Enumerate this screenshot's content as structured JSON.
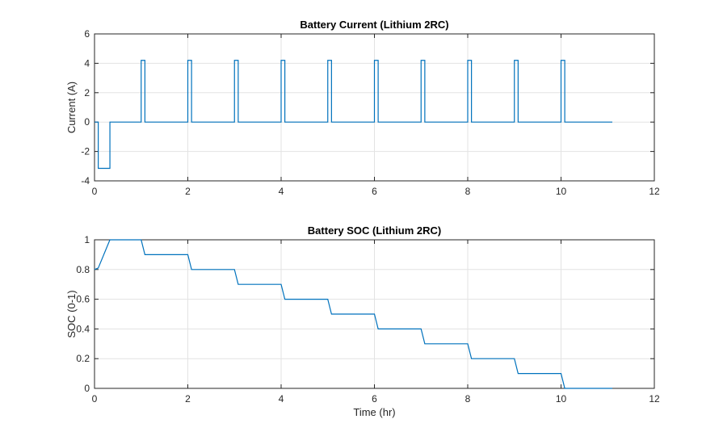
{
  "chart_data": [
    {
      "type": "line",
      "title": "Battery Current (Lithium 2RC)",
      "xlabel": "",
      "ylabel": "Current (A)",
      "xlim": [
        0,
        12
      ],
      "ylim": [
        -4,
        6
      ],
      "xticks": [
        0,
        2,
        4,
        6,
        8,
        10,
        12
      ],
      "yticks": [
        -4,
        -2,
        0,
        2,
        4,
        6
      ],
      "grid": true,
      "series_color": "#0072BD",
      "series": [
        {
          "values": [
            [
              0,
              0
            ],
            [
              0.08,
              0
            ],
            [
              0.08,
              -3.15
            ],
            [
              0.33,
              -3.15
            ],
            [
              0.33,
              0
            ],
            [
              1.0,
              0
            ],
            [
              1.0,
              4.2
            ],
            [
              1.08,
              4.2
            ],
            [
              1.08,
              0
            ],
            [
              2.0,
              0
            ],
            [
              2.0,
              4.2
            ],
            [
              2.08,
              4.2
            ],
            [
              2.08,
              0
            ],
            [
              3.0,
              0
            ],
            [
              3.0,
              4.2
            ],
            [
              3.08,
              4.2
            ],
            [
              3.08,
              0
            ],
            [
              4.0,
              0
            ],
            [
              4.0,
              4.2
            ],
            [
              4.08,
              4.2
            ],
            [
              4.08,
              0
            ],
            [
              5.0,
              0
            ],
            [
              5.0,
              4.2
            ],
            [
              5.08,
              4.2
            ],
            [
              5.08,
              0
            ],
            [
              6.0,
              0
            ],
            [
              6.0,
              4.2
            ],
            [
              6.08,
              4.2
            ],
            [
              6.08,
              0
            ],
            [
              7.0,
              0
            ],
            [
              7.0,
              4.2
            ],
            [
              7.08,
              4.2
            ],
            [
              7.08,
              0
            ],
            [
              8.0,
              0
            ],
            [
              8.0,
              4.2
            ],
            [
              8.08,
              4.2
            ],
            [
              8.08,
              0
            ],
            [
              9.0,
              0
            ],
            [
              9.0,
              4.2
            ],
            [
              9.08,
              4.2
            ],
            [
              9.08,
              0
            ],
            [
              10.0,
              0
            ],
            [
              10.0,
              4.2
            ],
            [
              10.08,
              4.2
            ],
            [
              10.08,
              0
            ],
            [
              11.1,
              0
            ]
          ]
        }
      ]
    },
    {
      "type": "line",
      "title": "Battery SOC (Lithium 2RC)",
      "xlabel": "Time (hr)",
      "ylabel": "SOC (0-1)",
      "xlim": [
        0,
        12
      ],
      "ylim": [
        0,
        1
      ],
      "xticks": [
        0,
        2,
        4,
        6,
        8,
        10,
        12
      ],
      "yticks": [
        0,
        0.2,
        0.4,
        0.6,
        0.8,
        1
      ],
      "grid": true,
      "series_color": "#0072BD",
      "series": [
        {
          "values": [
            [
              0,
              0.8
            ],
            [
              0.08,
              0.81
            ],
            [
              0.33,
              1.0
            ],
            [
              1.0,
              1.0
            ],
            [
              1.08,
              0.9
            ],
            [
              2.0,
              0.9
            ],
            [
              2.08,
              0.8
            ],
            [
              3.0,
              0.8
            ],
            [
              3.08,
              0.7
            ],
            [
              4.0,
              0.7
            ],
            [
              4.08,
              0.6
            ],
            [
              5.0,
              0.6
            ],
            [
              5.08,
              0.5
            ],
            [
              6.0,
              0.5
            ],
            [
              6.08,
              0.4
            ],
            [
              7.0,
              0.4
            ],
            [
              7.08,
              0.3
            ],
            [
              8.0,
              0.3
            ],
            [
              8.08,
              0.2
            ],
            [
              9.0,
              0.2
            ],
            [
              9.08,
              0.1
            ],
            [
              10.0,
              0.1
            ],
            [
              10.08,
              0.0
            ],
            [
              11.1,
              0.0
            ]
          ]
        }
      ]
    }
  ]
}
